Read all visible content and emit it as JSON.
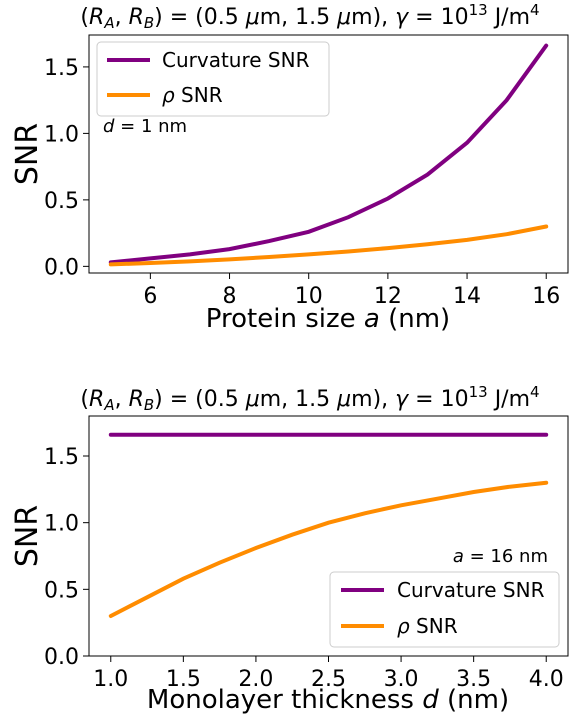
{
  "chart_data": [
    {
      "type": "line",
      "title": "(R_A, R_B) = (0.5 μm, 1.5 μm), γ = 10^13 J/m^4",
      "xlabel": "Protein size a (nm)",
      "ylabel": "SNR",
      "annotation": "d = 1 nm",
      "xlim": [
        4.45,
        16.55
      ],
      "ylim": [
        -0.05,
        1.74
      ],
      "xticks": [
        "6",
        "8",
        "10",
        "12",
        "14",
        "16"
      ],
      "yticks": [
        "0.0",
        "0.5",
        "1.0",
        "1.5"
      ],
      "legend_position": "upper left",
      "grid": false,
      "series": [
        {
          "name": "Curvature SNR",
          "color": "#800080",
          "x": [
            5,
            6,
            7,
            8,
            9,
            10,
            11,
            12,
            13,
            14,
            15,
            16
          ],
          "y": [
            0.03,
            0.06,
            0.09,
            0.13,
            0.19,
            0.26,
            0.37,
            0.51,
            0.69,
            0.93,
            1.25,
            1.66
          ]
        },
        {
          "name": "ρ SNR",
          "color": "#ff8c00",
          "x": [
            5,
            6,
            7,
            8,
            9,
            10,
            11,
            12,
            13,
            14,
            15,
            16
          ],
          "y": [
            0.015,
            0.025,
            0.037,
            0.052,
            0.07,
            0.09,
            0.112,
            0.137,
            0.166,
            0.199,
            0.242,
            0.3
          ]
        }
      ]
    },
    {
      "type": "line",
      "title": "(R_A, R_B) = (0.5 μm, 1.5 μm), γ = 10^13 J/m^4",
      "xlabel": "Monolayer thickness d (nm)",
      "ylabel": "SNR",
      "annotation": "a = 16 nm",
      "xlim": [
        0.85,
        4.15
      ],
      "ylim": [
        0.0,
        1.8
      ],
      "xticks": [
        "1.0",
        "1.5",
        "2.0",
        "2.5",
        "3.0",
        "3.5",
        "4.0"
      ],
      "yticks": [
        "0.0",
        "0.5",
        "1.0",
        "1.5"
      ],
      "legend_position": "lower right",
      "grid": false,
      "series": [
        {
          "name": "Curvature SNR",
          "color": "#800080",
          "x": [
            1.0,
            1.5,
            2.0,
            2.5,
            3.0,
            3.5,
            4.0
          ],
          "y": [
            1.66,
            1.66,
            1.66,
            1.66,
            1.66,
            1.66,
            1.66
          ]
        },
        {
          "name": "ρ SNR",
          "color": "#ff8c00",
          "x": [
            1.0,
            1.25,
            1.5,
            1.75,
            2.0,
            2.25,
            2.5,
            2.75,
            3.0,
            3.25,
            3.5,
            3.75,
            4.0
          ],
          "y": [
            0.3,
            0.44,
            0.58,
            0.7,
            0.81,
            0.91,
            1.0,
            1.07,
            1.13,
            1.18,
            1.23,
            1.27,
            1.3
          ]
        }
      ]
    }
  ]
}
